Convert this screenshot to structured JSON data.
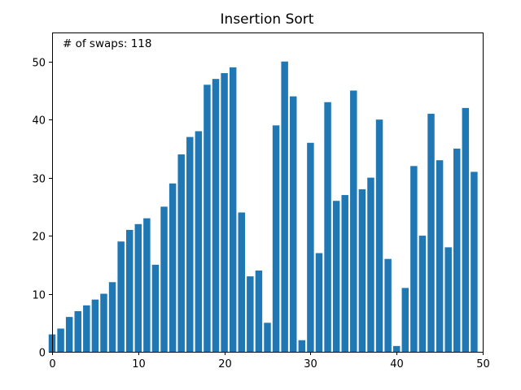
{
  "chart_data": {
    "type": "bar",
    "title": "Insertion Sort",
    "annotation": "# of swaps: 118",
    "xlabel": "",
    "ylabel": "",
    "xlim": [
      0,
      50
    ],
    "ylim": [
      0,
      55
    ],
    "xticks": [
      0,
      10,
      20,
      30,
      40,
      50
    ],
    "yticks": [
      0,
      10,
      20,
      30,
      40,
      50
    ],
    "grid": false,
    "bar_color": "#1f77b4",
    "x": [
      0,
      1,
      2,
      3,
      4,
      5,
      6,
      7,
      8,
      9,
      10,
      11,
      12,
      13,
      14,
      15,
      16,
      17,
      18,
      19,
      20,
      21,
      22,
      23,
      24,
      25,
      26,
      27,
      28,
      29,
      30,
      31,
      32,
      33,
      34,
      35,
      36,
      37,
      38,
      39,
      40,
      41,
      42,
      43,
      44,
      45,
      46,
      47,
      48,
      49
    ],
    "values": [
      3,
      4,
      6,
      7,
      8,
      9,
      10,
      12,
      19,
      21,
      22,
      23,
      15,
      25,
      29,
      34,
      37,
      38,
      46,
      47,
      48,
      49,
      24,
      13,
      14,
      5,
      39,
      50,
      44,
      2,
      36,
      17,
      43,
      26,
      27,
      45,
      28,
      30,
      40,
      16,
      1,
      11,
      32,
      20,
      41,
      33,
      18,
      35,
      42,
      31
    ]
  }
}
